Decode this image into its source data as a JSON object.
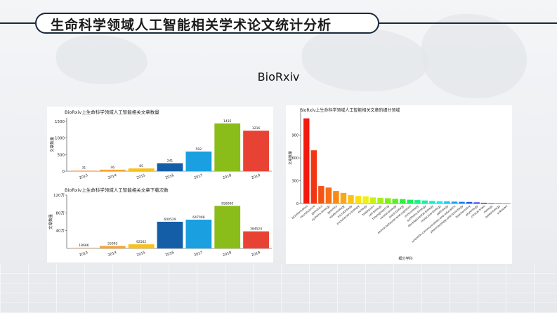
{
  "page": {
    "title": "生命科学领域人工智能相关学术论文统计分析",
    "subtitle": "BioRxiv"
  },
  "chart_data": [
    {
      "type": "bar",
      "title": "BioRxiv上生命科学领域人工智能相关文章数量",
      "xlabel": "",
      "ylabel": "文章数量",
      "categories": [
        "2013",
        "2014",
        "2015",
        "2016",
        "2017",
        "2018",
        "2019"
      ],
      "values": [
        31,
        46,
        85,
        241,
        592,
        1435,
        1216
      ],
      "value_labels": [
        "31",
        "46",
        "85",
        "241",
        "592",
        "1435",
        "1216"
      ],
      "colors": [
        "#f5c9a6",
        "#f7a535",
        "#f7c21d",
        "#145ea8",
        "#1a9fe0",
        "#8bbd1a",
        "#e84235"
      ],
      "ylim": [
        0,
        1600
      ],
      "yticks": [
        0,
        500,
        1000,
        1500
      ],
      "ytick_labels": [
        "0",
        "500",
        "1000",
        "1500"
      ],
      "grid": false
    },
    {
      "type": "bar",
      "title": "BioRxiv上生命科学领域人工智能相关文章下载次数",
      "xlabel": "",
      "ylabel": "文章数量",
      "categories": [
        "2013",
        "2014",
        "2015",
        "2016",
        "2017",
        "2018",
        "2019"
      ],
      "values": [
        18686,
        55993,
        92562,
        600529,
        647008,
        958000,
        384524
      ],
      "value_labels": [
        "18686",
        "55993",
        "92562",
        "600529",
        "647008",
        "958000",
        "384524"
      ],
      "colors": [
        "#f5c9a6",
        "#f7a535",
        "#f7c21d",
        "#145ea8",
        "#1a9fe0",
        "#8bbd1a",
        "#e84235"
      ],
      "ylim": [
        0,
        1200000
      ],
      "yticks": [
        400000,
        800000,
        1200000
      ],
      "ytick_labels": [
        "40万",
        "80万",
        "120万"
      ],
      "grid": false
    },
    {
      "type": "bar",
      "title": "BioRxiv上生命科学领域人工智能相关文章的细分领域",
      "xlabel": "细分学科",
      "ylabel": "文章数量",
      "categories": [
        "bioinformatics",
        "neuroscience",
        "genomics",
        "systems-biology",
        "genetics",
        "epidemiology",
        "microbiology",
        "evolutionary-biology",
        "ecology",
        "biophysics",
        "cell-biology",
        "bioengineering",
        "cancer-biology",
        "plant-biology",
        "animal-behavior-and-cognition",
        "immunology",
        "synthetic-biology",
        "developmental-biology",
        "molecular-biology",
        "pathology",
        "scientific-communication-and-education",
        "pharmacology-and-toxicology",
        "biochemistry",
        "physiology",
        "clinical-trials",
        "zoology",
        "paleontology",
        "unknown"
      ],
      "values": [
        1120,
        700,
        230,
        210,
        165,
        140,
        110,
        100,
        95,
        80,
        75,
        70,
        62,
        58,
        50,
        45,
        40,
        35,
        30,
        28,
        25,
        22,
        20,
        15,
        10,
        6,
        4,
        2
      ],
      "colors": [
        "#f21a0f",
        "#f23614",
        "#f55214",
        "#f76e14",
        "#f98a14",
        "#fba614",
        "#fdc314",
        "#fde014",
        "#eef114",
        "#c9f214",
        "#a3f214",
        "#7cf214",
        "#55f21f",
        "#2ef23c",
        "#14f25e",
        "#14f282",
        "#14f2a6",
        "#14f2cb",
        "#14eaf2",
        "#14c5f2",
        "#14a0f2",
        "#147bf2",
        "#1456f2",
        "#2a31f2",
        "#4f14f2",
        "#7414f2",
        "#9914f2",
        "#be14f2"
      ],
      "ylim": [
        0,
        1200
      ],
      "yticks": [
        0,
        300,
        600,
        900
      ],
      "ytick_labels": [
        "0",
        "300",
        "600",
        "900"
      ],
      "grid": false
    }
  ]
}
